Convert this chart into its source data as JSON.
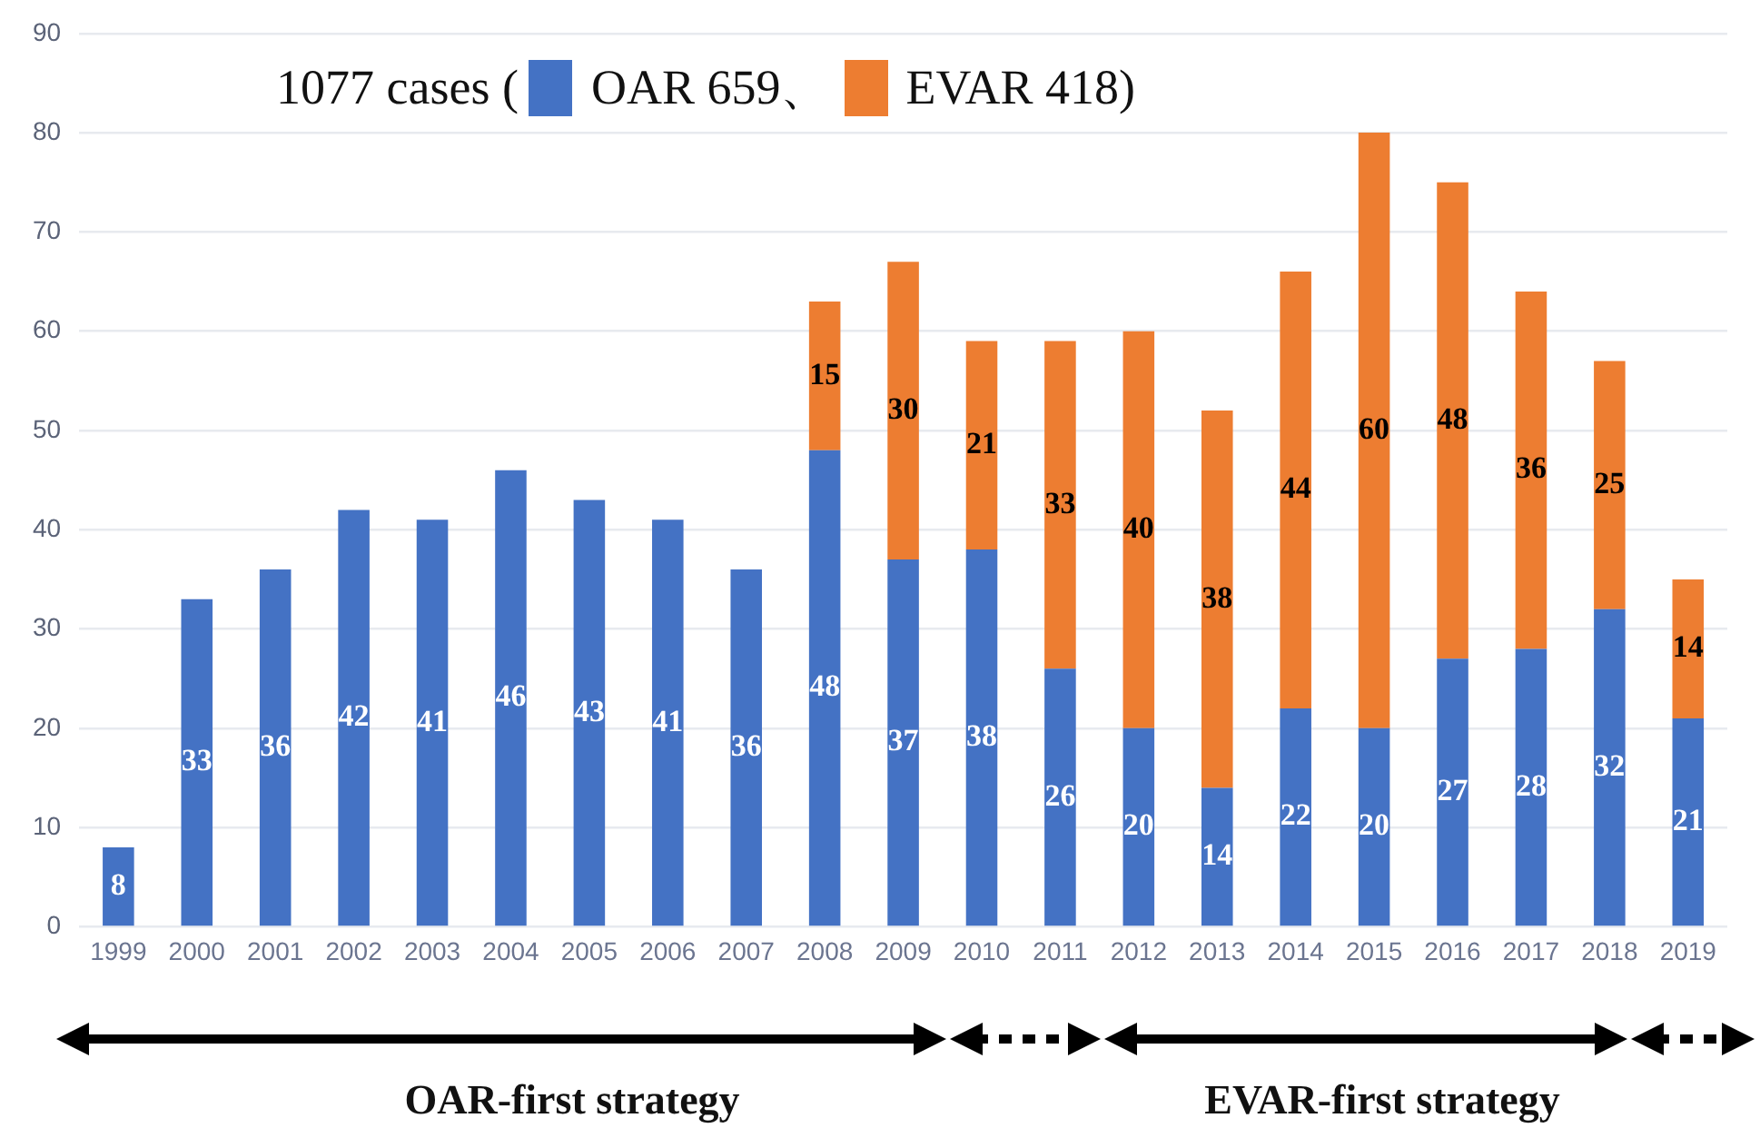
{
  "chart_data": {
    "type": "bar",
    "stacked": true,
    "categories": [
      "1999",
      "2000",
      "2001",
      "2002",
      "2003",
      "2004",
      "2005",
      "2006",
      "2007",
      "2008",
      "2009",
      "2010",
      "2011",
      "2012",
      "2013",
      "2014",
      "2015",
      "2016",
      "2017",
      "2018",
      "2019"
    ],
    "series": [
      {
        "name": "OAR 659、",
        "color": "#4472c4",
        "values": [
          8,
          33,
          36,
          42,
          41,
          46,
          43,
          41,
          36,
          48,
          37,
          38,
          26,
          20,
          14,
          22,
          20,
          27,
          28,
          32,
          21
        ]
      },
      {
        "name": "EVAR 418)",
        "color": "#ed7d31",
        "values": [
          null,
          null,
          null,
          null,
          null,
          null,
          null,
          null,
          null,
          15,
          30,
          21,
          33,
          40,
          38,
          44,
          60,
          48,
          36,
          25,
          14
        ]
      }
    ],
    "legend_title": "1077 cases (",
    "legend": "top",
    "ylim": [
      0,
      90
    ],
    "yticks": [
      0,
      10,
      20,
      30,
      40,
      50,
      60,
      70,
      80,
      90
    ],
    "grid": "y",
    "data_labels": true,
    "annotations": [
      "OAR-first strategy",
      "EVAR-first strategy"
    ]
  }
}
